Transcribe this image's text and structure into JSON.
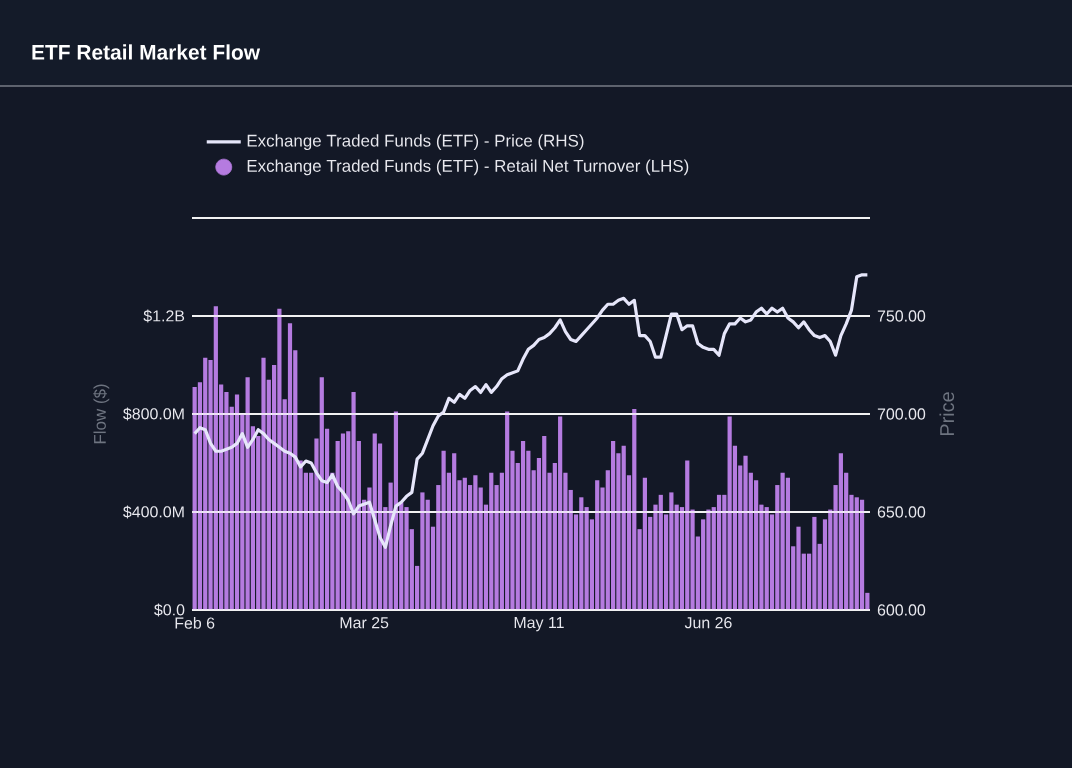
{
  "chart_data": {
    "type": "bar",
    "title": "ETF Retail Market Flow",
    "ylabel": "Flow ($)",
    "y2label": "Price",
    "categories": [
      "Feb 6",
      null,
      null,
      null,
      null,
      null,
      null,
      null,
      null,
      null,
      null,
      null,
      null,
      null,
      null,
      null,
      null,
      null,
      null,
      null,
      null,
      null,
      null,
      null,
      null,
      null,
      null,
      null,
      null,
      null,
      null,
      null,
      "Mar 25",
      null,
      null,
      null,
      null,
      null,
      null,
      null,
      null,
      null,
      null,
      null,
      null,
      null,
      null,
      null,
      null,
      null,
      null,
      null,
      null,
      null,
      null,
      null,
      null,
      null,
      null,
      null,
      null,
      null,
      null,
      null,
      null,
      "May 11",
      null,
      null,
      null,
      null,
      null,
      null,
      null,
      null,
      null,
      null,
      null,
      null,
      null,
      null,
      null,
      null,
      null,
      null,
      null,
      null,
      null,
      null,
      null,
      null,
      null,
      null,
      null,
      null,
      null,
      null,
      null,
      "Jun 26",
      null,
      null,
      null,
      null,
      null,
      null,
      null,
      null,
      null,
      null,
      null,
      null,
      null,
      null,
      null,
      null,
      null,
      null,
      null,
      null,
      null,
      null,
      null,
      null,
      null,
      null,
      null,
      null,
      null,
      null
    ],
    "series": [
      {
        "name": "Exchange Traded Funds (ETF) - Retail Net Turnover (LHS)",
        "color": "#b57be0",
        "values": [
          910000000,
          930000000,
          1030000000,
          1020000000,
          1240000000,
          920000000,
          890000000,
          830000000,
          880000000,
          800000000,
          950000000,
          750000000,
          710000000,
          1030000000,
          940000000,
          1000000000,
          1230000000,
          860000000,
          1170000000,
          1060000000,
          610000000,
          560000000,
          560000000,
          700000000,
          950000000,
          740000000,
          560000000,
          690000000,
          720000000,
          730000000,
          890000000,
          690000000,
          450000000,
          500000000,
          720000000,
          680000000,
          420000000,
          520000000,
          810000000,
          440000000,
          420000000,
          330000000,
          180000000,
          480000000,
          450000000,
          340000000,
          510000000,
          650000000,
          560000000,
          640000000,
          530000000,
          540000000,
          510000000,
          550000000,
          500000000,
          430000000,
          560000000,
          510000000,
          560000000,
          810000000,
          650000000,
          600000000,
          690000000,
          650000000,
          570000000,
          620000000,
          710000000,
          560000000,
          600000000,
          790000000,
          560000000,
          490000000,
          390000000,
          460000000,
          420000000,
          370000000,
          530000000,
          500000000,
          570000000,
          690000000,
          640000000,
          670000000,
          550000000,
          820000000,
          330000000,
          540000000,
          380000000,
          430000000,
          470000000,
          390000000,
          480000000,
          430000000,
          420000000,
          610000000,
          410000000,
          300000000,
          370000000,
          410000000,
          420000000,
          470000000,
          470000000,
          790000000,
          670000000,
          590000000,
          630000000,
          560000000,
          530000000,
          430000000,
          420000000,
          390000000,
          510000000,
          560000000,
          540000000,
          260000000,
          340000000,
          230000000,
          230000000,
          380000000,
          270000000,
          370000000,
          410000000,
          510000000,
          640000000,
          560000000,
          470000000,
          460000000,
          450000000,
          70000000
        ]
      },
      {
        "name": "Exchange Traded Funds (ETF) - Price (RHS)",
        "type": "line",
        "axis": "y2",
        "color": "#e6e6fa",
        "values": [
          690,
          693,
          692,
          685,
          681,
          681,
          682,
          683,
          685,
          690,
          683,
          687,
          692,
          690,
          687,
          685,
          683,
          681,
          680,
          678,
          673,
          676,
          675,
          670,
          666,
          665,
          669,
          663,
          660,
          656,
          649,
          653,
          654,
          655,
          646,
          637,
          632,
          643,
          653,
          655,
          658,
          660,
          677,
          680,
          687,
          694,
          699,
          701,
          708,
          706,
          710,
          708,
          712,
          714,
          711,
          715,
          711,
          714,
          718,
          720,
          721,
          722,
          728,
          733,
          735,
          738,
          739,
          741,
          744,
          748,
          742,
          738,
          737,
          740,
          743,
          746,
          749,
          753,
          756,
          756,
          758,
          759,
          756,
          758,
          740,
          740,
          737,
          729,
          729,
          740,
          751,
          751,
          743,
          745,
          745,
          736,
          734,
          733,
          733,
          730,
          741,
          746,
          746,
          749,
          747,
          748,
          752,
          754,
          751,
          754,
          752,
          754,
          749,
          747,
          744,
          747,
          743,
          740,
          739,
          740,
          737,
          730,
          740,
          746,
          753,
          770,
          771,
          771
        ]
      }
    ],
    "ylim": [
      0,
      1600000000
    ],
    "yticks": [
      {
        "value": 0,
        "label": "$0.0"
      },
      {
        "value": 400000000,
        "label": "$400.0M"
      },
      {
        "value": 800000000,
        "label": "$800.0M"
      },
      {
        "value": 1200000000,
        "label": "$1.2B"
      },
      {
        "value": 1600000000,
        "label": null
      }
    ],
    "y2lim": [
      600,
      800
    ],
    "y2ticks": [
      {
        "value": 600,
        "label": "600.00"
      },
      {
        "value": 650,
        "label": "650.00"
      },
      {
        "value": 700,
        "label": "700.00"
      },
      {
        "value": 750,
        "label": "750.00"
      },
      {
        "value": 800,
        "label": null
      }
    ],
    "grid": "y",
    "legend": "top"
  }
}
